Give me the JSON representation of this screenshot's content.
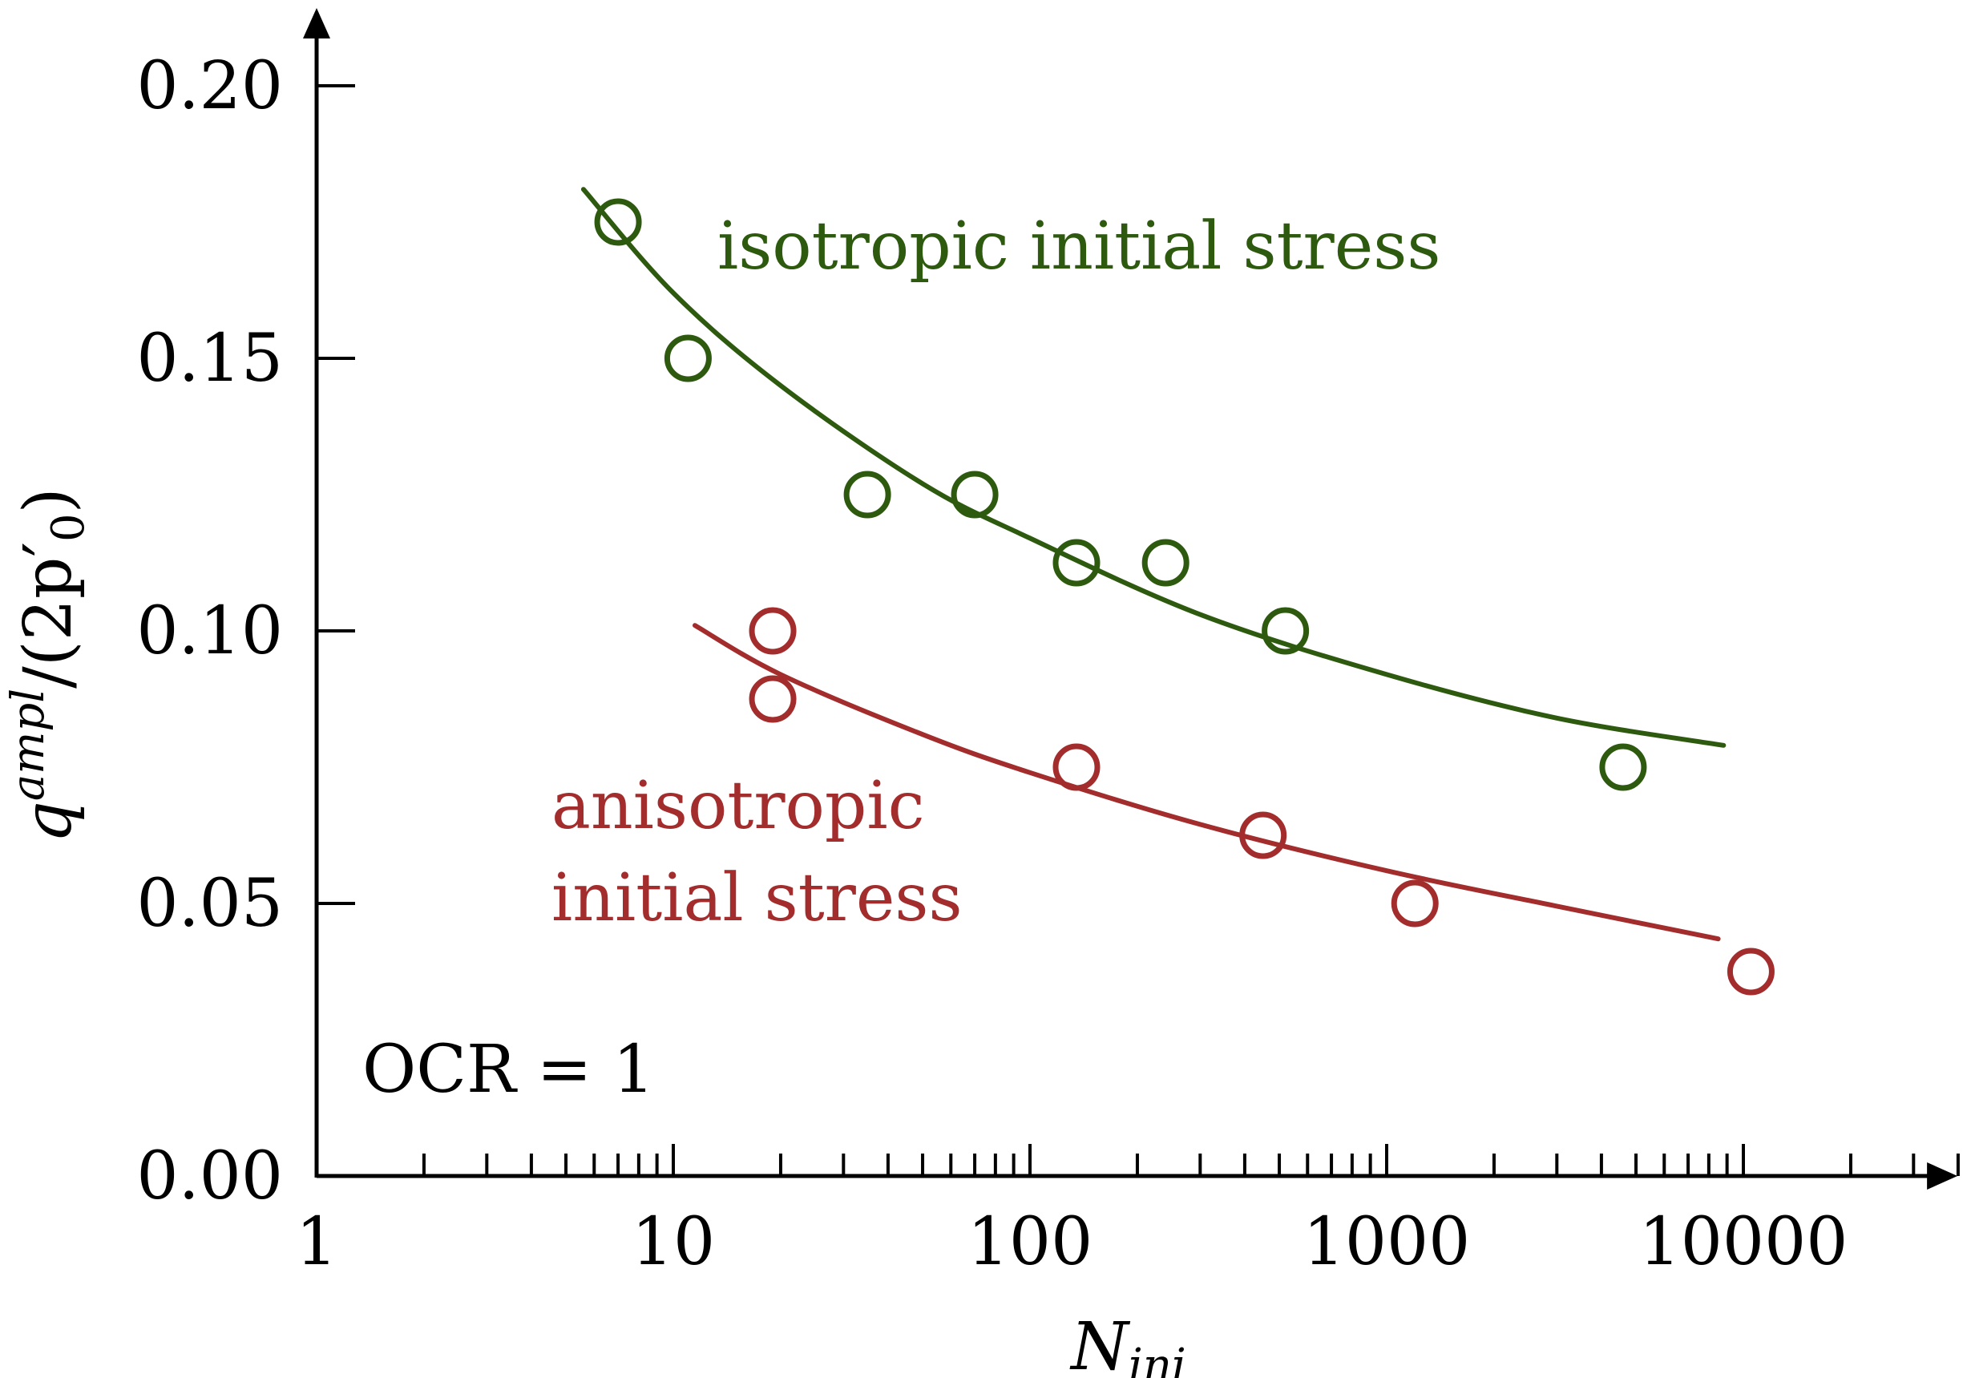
{
  "chart_data": {
    "type": "scatter",
    "x_scale": "log",
    "xlim": [
      1,
      35000
    ],
    "ylim": [
      0.0,
      0.2
    ],
    "x_ticks": [
      1,
      10,
      100,
      1000,
      10000
    ],
    "x_tick_labels": [
      "1",
      "10",
      "100",
      "1000",
      "10000"
    ],
    "y_ticks": [
      0.0,
      0.05,
      0.1,
      0.15,
      0.2
    ],
    "y_tick_labels": [
      "0.00",
      "0.05",
      "0.10",
      "0.15",
      "0.20"
    ],
    "xlabel": {
      "main": "N",
      "sub": "ini"
    },
    "ylabel": {
      "q": "q",
      "sup": "ampl",
      "rest": "/(2p",
      "prime": "′",
      "sub": "0",
      "close": ")"
    },
    "grid": false,
    "annotation": "OCR = 1",
    "series": [
      {
        "name": "isotropic initial stress",
        "color": "#2d5a0e",
        "points": [
          [
            7,
            0.175
          ],
          [
            11,
            0.15
          ],
          [
            35,
            0.125
          ],
          [
            70,
            0.125
          ],
          [
            135,
            0.1125
          ],
          [
            240,
            0.1125
          ],
          [
            520,
            0.1
          ],
          [
            4600,
            0.075
          ]
        ],
        "fit": [
          [
            5.6,
            0.181
          ],
          [
            10,
            0.162
          ],
          [
            20,
            0.145
          ],
          [
            50,
            0.127
          ],
          [
            100,
            0.117
          ],
          [
            300,
            0.103
          ],
          [
            1000,
            0.092
          ],
          [
            3000,
            0.084
          ],
          [
            8800,
            0.079
          ]
        ]
      },
      {
        "name": "anisotropic initial stress",
        "label_lines": [
          "anisotropic",
          "initial stress"
        ],
        "color": "#a32c2c",
        "points": [
          [
            19,
            0.1
          ],
          [
            19,
            0.0875
          ],
          [
            135,
            0.075
          ],
          [
            450,
            0.0625
          ],
          [
            1200,
            0.05
          ],
          [
            10500,
            0.0375
          ]
        ],
        "fit": [
          [
            11.5,
            0.101
          ],
          [
            20,
            0.092
          ],
          [
            50,
            0.081
          ],
          [
            100,
            0.074
          ],
          [
            300,
            0.0645
          ],
          [
            1000,
            0.056
          ],
          [
            3000,
            0.0495
          ],
          [
            8500,
            0.0435
          ]
        ]
      }
    ]
  }
}
